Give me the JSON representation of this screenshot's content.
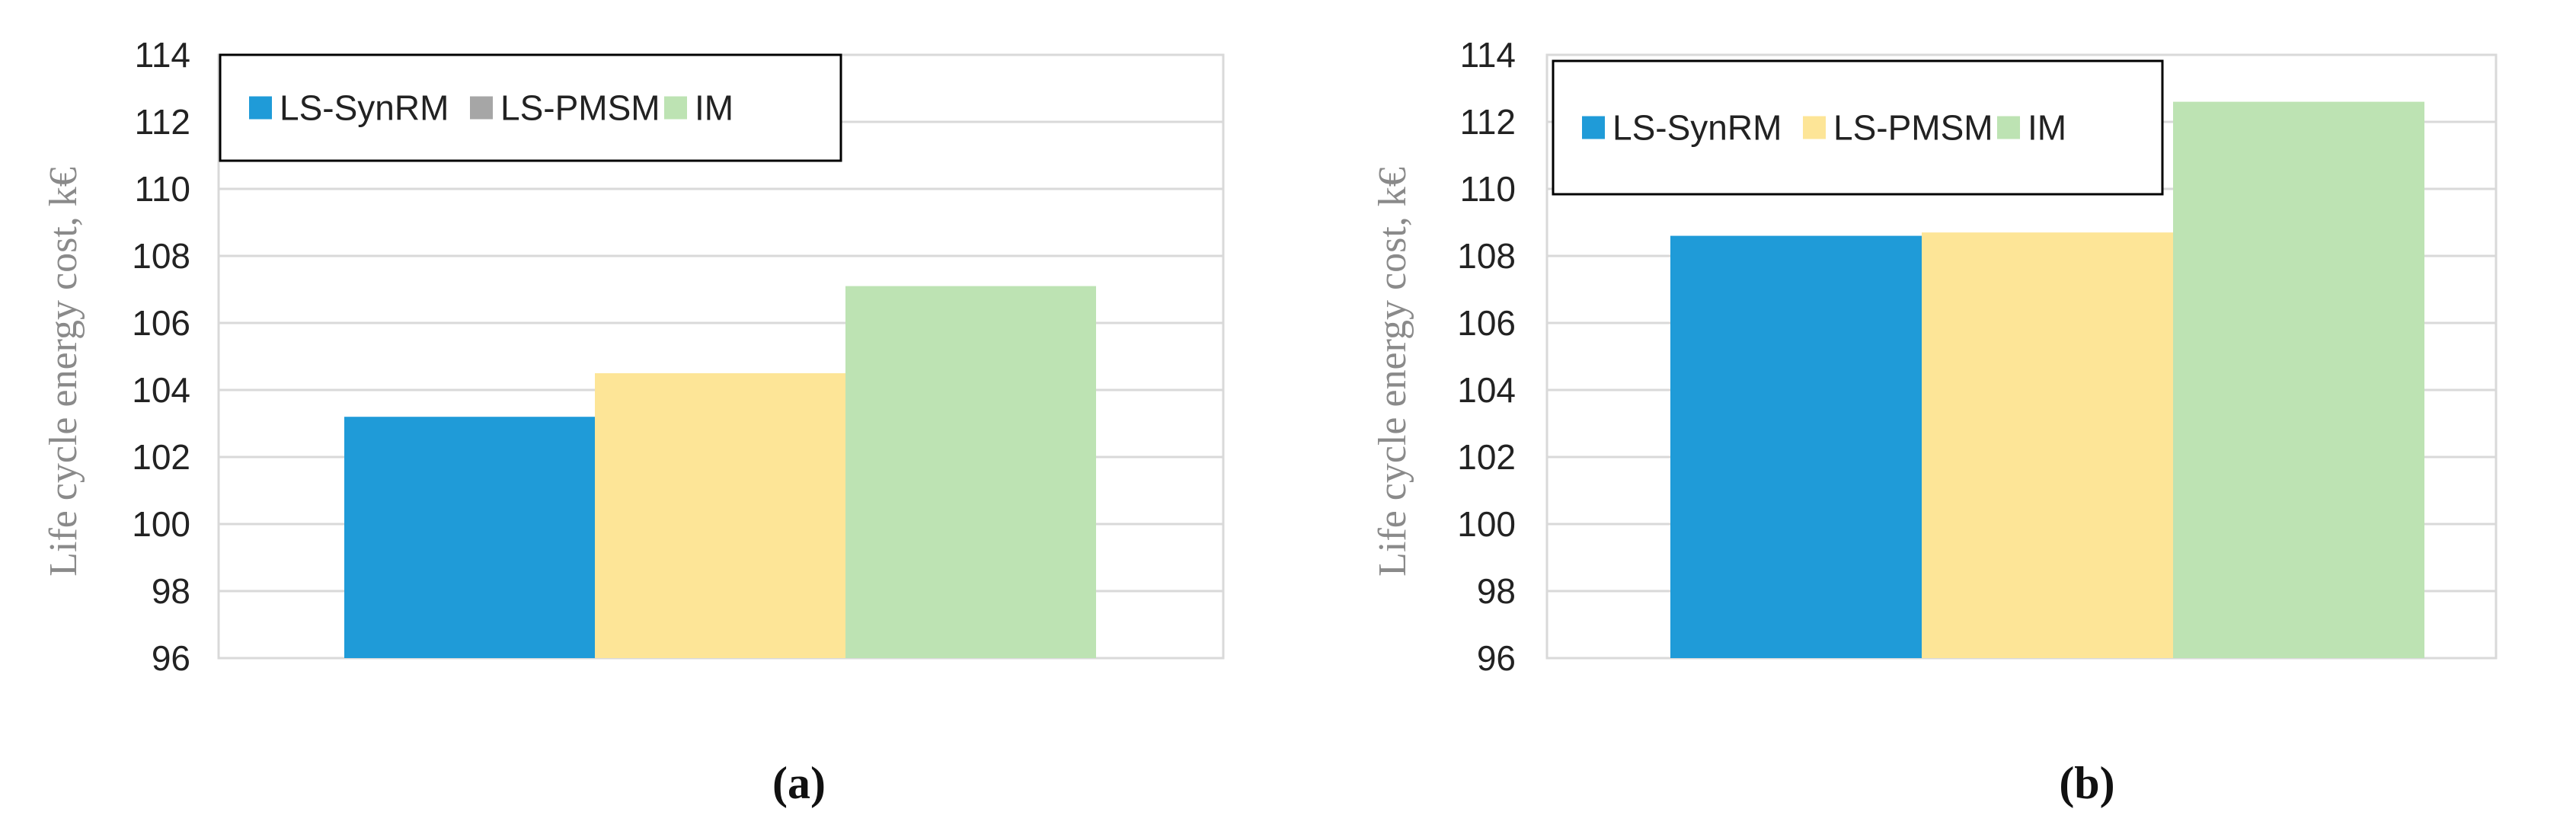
{
  "chart_data": [
    {
      "type": "bar",
      "panel_label": "(a)",
      "ylabel": "Life cycle energy cost, k€",
      "ylim": [
        96,
        114
      ],
      "yticks": [
        96,
        98,
        100,
        102,
        104,
        106,
        108,
        110,
        112,
        114
      ],
      "grid": true,
      "legend_position": "top-left",
      "categories": [
        ""
      ],
      "series": [
        {
          "name": "LS-SynRM",
          "color": "#1f9bd8",
          "legend_color": "#1f9bd8",
          "values": [
            103.2
          ]
        },
        {
          "name": "LS-PMSM",
          "color": "#fde597",
          "legend_color": "#a6a6a6",
          "values": [
            104.5
          ]
        },
        {
          "name": "IM",
          "color": "#bde3b3",
          "legend_color": "#bde3b3",
          "values": [
            107.1
          ]
        }
      ]
    },
    {
      "type": "bar",
      "panel_label": "(b)",
      "ylabel": "Life cycle energy cost, k€",
      "ylim": [
        96,
        114
      ],
      "yticks": [
        96,
        98,
        100,
        102,
        104,
        106,
        108,
        110,
        112,
        114
      ],
      "grid": true,
      "legend_position": "top-left",
      "categories": [
        ""
      ],
      "series": [
        {
          "name": "LS-SynRM",
          "color": "#1f9bd8",
          "legend_color": "#1f9bd8",
          "values": [
            108.6
          ]
        },
        {
          "name": "LS-PMSM",
          "color": "#fde597",
          "legend_color": "#fde597",
          "values": [
            108.7
          ]
        },
        {
          "name": "IM",
          "color": "#bde3b3",
          "legend_color": "#bde3b3",
          "values": [
            112.6
          ]
        }
      ]
    }
  ]
}
